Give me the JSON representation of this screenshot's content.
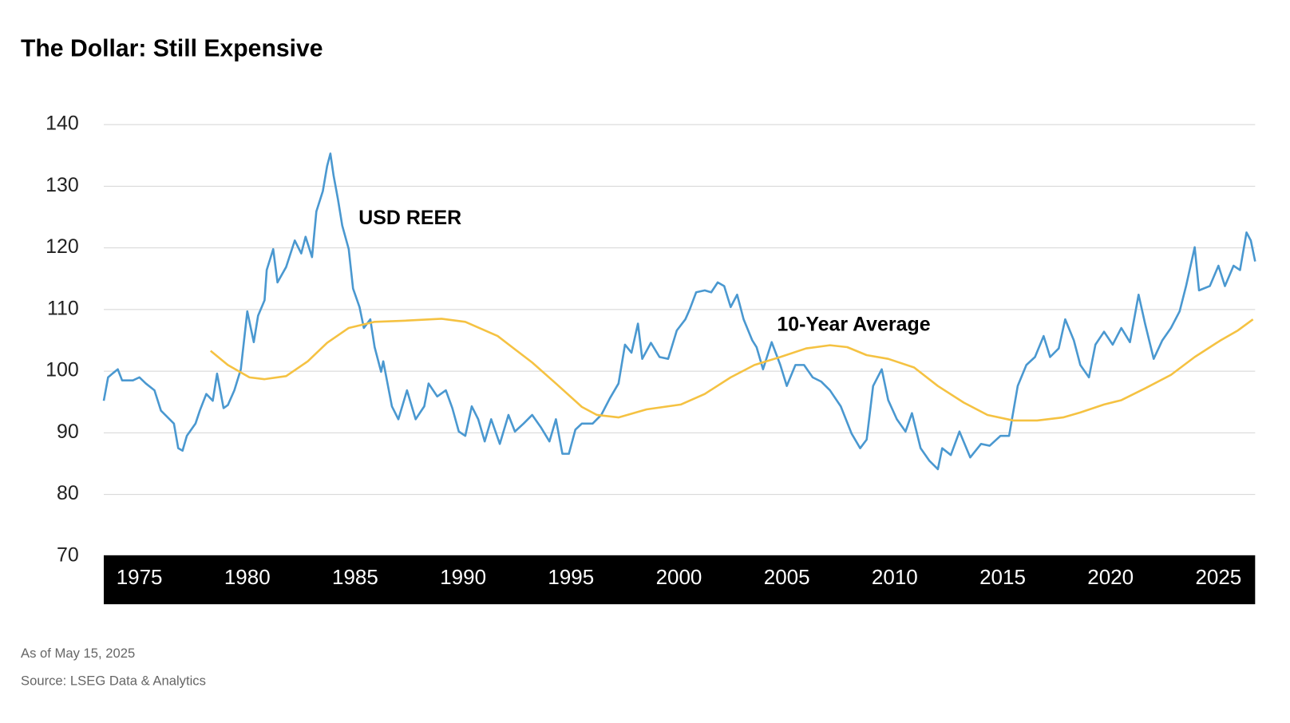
{
  "chart_data": {
    "type": "line",
    "title": "The Dollar: Still Expensive",
    "notes": "As of May 15, 2025",
    "source": "Source: LSEG Data & Analytics",
    "xlim": [
      1973.35,
      2026.7
    ],
    "xticks": [
      1975,
      1980,
      1985,
      1990,
      1995,
      2000,
      2005,
      2010,
      2015,
      2020,
      2025
    ],
    "ylim": [
      70,
      140
    ],
    "yticks": [
      70,
      80,
      90,
      100,
      110,
      120,
      130,
      140
    ],
    "grid": true,
    "series": [
      {
        "name": "USD REER",
        "color": "#4a98d0",
        "x": [
          1973.35,
          1973.55,
          1973.75,
          1974.0,
          1974.2,
          1974.7,
          1975.0,
          1975.3,
          1975.7,
          1976.0,
          1976.6,
          1976.8,
          1977.0,
          1977.2,
          1977.6,
          1977.8,
          1978.1,
          1978.4,
          1978.6,
          1978.9,
          1979.1,
          1979.4,
          1979.7,
          1980.0,
          1980.3,
          1980.5,
          1980.8,
          1980.9,
          1981.2,
          1981.4,
          1981.8,
          1982.2,
          1982.5,
          1982.7,
          1983.0,
          1983.2,
          1983.5,
          1983.7,
          1983.85,
          1984.0,
          1984.2,
          1984.4,
          1984.7,
          1984.9,
          1985.2,
          1985.4,
          1985.7,
          1985.9,
          1986.2,
          1986.3,
          1986.7,
          1987.0,
          1987.4,
          1987.8,
          1988.2,
          1988.4,
          1988.8,
          1989.2,
          1989.5,
          1989.8,
          1990.1,
          1990.4,
          1990.7,
          1991.0,
          1991.3,
          1991.7,
          1992.1,
          1992.4,
          1992.8,
          1993.2,
          1993.6,
          1994.0,
          1994.3,
          1994.6,
          1994.9,
          1995.2,
          1995.5,
          1996.0,
          1996.4,
          1996.8,
          1997.2,
          1997.5,
          1997.8,
          1998.1,
          1998.3,
          1998.7,
          1999.1,
          1999.5,
          1999.9,
          2000.3,
          2000.5,
          2000.8,
          2001.2,
          2001.5,
          2001.8,
          2002.1,
          2002.4,
          2002.7,
          2003.0,
          2003.4,
          2003.6,
          2003.9,
          2004.3,
          2004.7,
          2005.0,
          2005.4,
          2005.8,
          2006.2,
          2006.6,
          2007.0,
          2007.5,
          2008.0,
          2008.4,
          2008.7,
          2009.0,
          2009.4,
          2009.7,
          2010.1,
          2010.5,
          2010.8,
          2011.2,
          2011.6,
          2012.0,
          2012.2,
          2012.6,
          2013.0,
          2013.5,
          2014.0,
          2014.4,
          2014.9,
          2015.3,
          2015.7,
          2016.1,
          2016.5,
          2016.9,
          2017.2,
          2017.6,
          2017.9,
          2018.3,
          2018.6,
          2019.0,
          2019.3,
          2019.7,
          2020.1,
          2020.5,
          2020.9,
          2021.3,
          2021.6,
          2022.0,
          2022.4,
          2022.8,
          2023.2,
          2023.5,
          2023.9,
          2024.1,
          2024.6,
          2025.0,
          2025.3,
          2025.7,
          2026.0,
          2026.3,
          2026.5,
          2026.7
        ],
        "values": [
          95.2,
          99.0,
          99.6,
          100.3,
          98.5,
          98.5,
          99.0,
          98.0,
          96.9,
          93.6,
          91.5,
          87.5,
          87.1,
          89.5,
          91.5,
          93.6,
          96.3,
          95.2,
          99.6,
          94.0,
          94.5,
          96.9,
          100.3,
          109.7,
          104.7,
          109.0,
          111.5,
          116.4,
          119.8,
          114.4,
          116.9,
          121.2,
          119.1,
          121.8,
          118.5,
          125.9,
          129.2,
          133.3,
          135.3,
          131.7,
          127.9,
          123.6,
          119.8,
          113.4,
          110.4,
          107.0,
          108.4,
          103.9,
          99.9,
          101.6,
          94.3,
          92.2,
          96.9,
          92.2,
          94.3,
          98.0,
          95.9,
          96.9,
          94.0,
          90.2,
          89.5,
          94.3,
          92.2,
          88.6,
          92.2,
          88.2,
          92.9,
          90.2,
          91.5,
          92.9,
          90.9,
          88.6,
          92.2,
          86.6,
          86.6,
          90.5,
          91.5,
          91.5,
          92.9,
          95.6,
          98.0,
          104.3,
          103.0,
          107.7,
          102.0,
          104.6,
          102.3,
          102.0,
          106.6,
          108.4,
          110.0,
          112.8,
          113.1,
          112.8,
          114.4,
          113.8,
          110.4,
          112.4,
          108.4,
          105.0,
          103.9,
          100.3,
          104.7,
          101.0,
          97.6,
          101.0,
          101.0,
          99.0,
          98.3,
          96.9,
          94.3,
          89.9,
          87.5,
          88.9,
          97.6,
          100.3,
          95.3,
          92.2,
          90.2,
          93.2,
          87.5,
          85.5,
          84.1,
          87.5,
          86.4,
          90.2,
          86.0,
          88.2,
          87.9,
          89.5,
          89.5,
          97.6,
          101.0,
          102.3,
          105.7,
          102.3,
          103.7,
          108.4,
          105.0,
          101.0,
          99.0,
          104.3,
          106.4,
          104.3,
          107.0,
          104.7,
          112.4,
          107.7,
          102.0,
          105.0,
          107.0,
          109.7,
          113.8,
          120.1,
          113.1,
          113.8,
          117.1,
          113.8,
          117.1,
          116.4,
          122.5,
          121.2,
          117.8
        ]
      },
      {
        "name": "10-Year Average",
        "color": "#f5c242",
        "x": [
          1978.3,
          1979.1,
          1980.1,
          1980.8,
          1981.8,
          1982.8,
          1983.7,
          1984.7,
          1985.9,
          1987.4,
          1989.0,
          1990.1,
          1991.6,
          1993.2,
          1994.3,
          1995.5,
          1996.2,
          1997.2,
          1998.5,
          2000.1,
          2001.2,
          2002.4,
          2003.5,
          2004.7,
          2005.9,
          2007.0,
          2007.8,
          2008.7,
          2009.7,
          2010.9,
          2012.0,
          2013.2,
          2014.3,
          2015.5,
          2016.6,
          2017.8,
          2018.6,
          2019.7,
          2020.5,
          2021.6,
          2022.8,
          2023.9,
          2025.1,
          2025.9,
          2026.6
        ],
        "values": [
          103.3,
          101.0,
          99.0,
          98.7,
          99.2,
          101.6,
          104.6,
          107.0,
          108.0,
          108.2,
          108.5,
          108.0,
          105.7,
          101.4,
          98.0,
          94.2,
          92.9,
          92.5,
          93.8,
          94.6,
          96.3,
          99.0,
          101.0,
          102.3,
          103.7,
          104.2,
          103.9,
          102.6,
          102.0,
          100.6,
          97.6,
          94.9,
          92.9,
          92.0,
          92.0,
          92.5,
          93.3,
          94.6,
          95.3,
          97.2,
          99.4,
          102.3,
          105.0,
          106.6,
          108.4
        ]
      }
    ]
  }
}
